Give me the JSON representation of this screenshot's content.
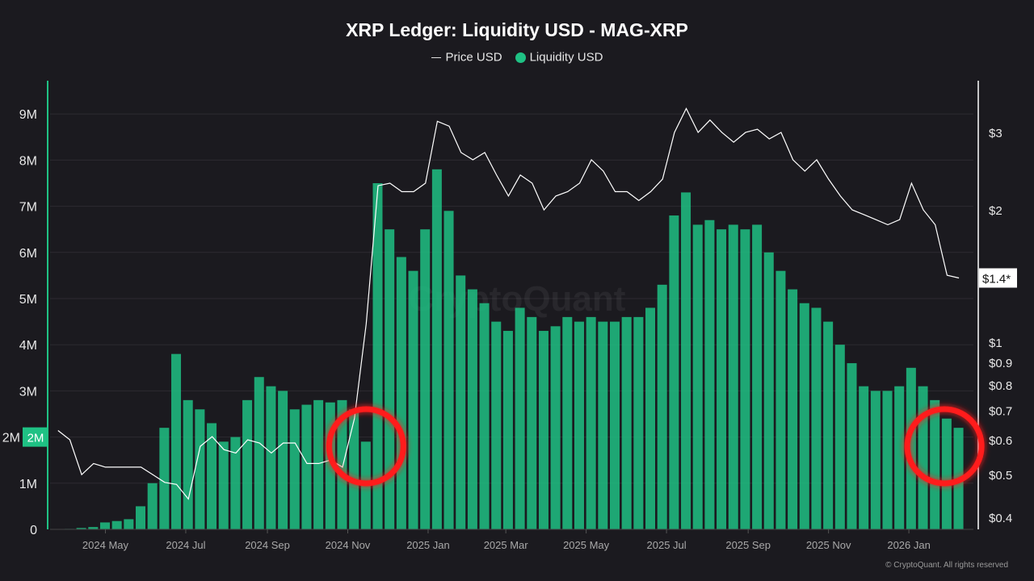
{
  "chart_data": {
    "type": "bar+line",
    "title": "XRP Ledger: Liquidity USD - MAG-XRP",
    "legend": {
      "placement": "top-center",
      "entries": [
        "Price USD",
        "Liquidity USD"
      ]
    },
    "colors": {
      "liquidity": "#1fc184",
      "price": "#ffffff",
      "annotation": "#ff1a1a",
      "background": "#1b1a1f"
    },
    "grid": true,
    "y_left": {
      "ticks": [
        "0",
        "1M",
        "2M",
        "3M",
        "4M",
        "5M",
        "6M",
        "7M",
        "8M",
        "9M"
      ],
      "range": [
        0,
        9.7
      ],
      "unit": "M",
      "highlight_label": "2M"
    },
    "y_right": {
      "scale": "log",
      "ticks": [
        "$0.4",
        "$0.5",
        "$0.6",
        "$0.7",
        "$0.8",
        "$0.9",
        "$1",
        "$2",
        "$3"
      ],
      "tick_values": [
        0.4,
        0.5,
        0.6,
        0.7,
        0.8,
        0.9,
        1,
        2,
        3
      ],
      "current_label": "$1.4*"
    },
    "x_ticks": [
      "2024 May",
      "2024 Jul",
      "2024 Sep",
      "2024 Nov",
      "2025 Jan",
      "2025 Mar",
      "2025 May",
      "2025 Jul",
      "2025 Sep",
      "2025 Nov",
      "2026 Jan"
    ],
    "x_tick_dates": [
      "2024-05-01",
      "2024-07-01",
      "2024-09-01",
      "2024-11-01",
      "2025-01-01",
      "2025-03-01",
      "2025-05-01",
      "2025-07-01",
      "2025-09-01",
      "2025-11-01",
      "2026-01-01"
    ],
    "x_range": [
      "2024-03-20",
      "2026-02-19"
    ],
    "dates": [
      "2024-03-26",
      "2024-04-04",
      "2024-04-13",
      "2024-04-22",
      "2024-05-01",
      "2024-05-10",
      "2024-05-19",
      "2024-05-28",
      "2024-06-06",
      "2024-06-15",
      "2024-06-24",
      "2024-07-03",
      "2024-07-12",
      "2024-07-21",
      "2024-07-30",
      "2024-08-08",
      "2024-08-17",
      "2024-08-26",
      "2024-09-04",
      "2024-09-13",
      "2024-09-22",
      "2024-10-01",
      "2024-10-10",
      "2024-10-19",
      "2024-10-28",
      "2024-11-06",
      "2024-11-15",
      "2024-11-24",
      "2024-12-03",
      "2024-12-12",
      "2024-12-21",
      "2024-12-30",
      "2025-01-08",
      "2025-01-17",
      "2025-01-26",
      "2025-02-04",
      "2025-02-13",
      "2025-02-22",
      "2025-03-03",
      "2025-03-12",
      "2025-03-21",
      "2025-03-30",
      "2025-04-08",
      "2025-04-17",
      "2025-04-26",
      "2025-05-05",
      "2025-05-14",
      "2025-05-23",
      "2025-06-01",
      "2025-06-10",
      "2025-06-19",
      "2025-06-28",
      "2025-07-07",
      "2025-07-16",
      "2025-07-25",
      "2025-08-03",
      "2025-08-12",
      "2025-08-21",
      "2025-08-30",
      "2025-09-08",
      "2025-09-17",
      "2025-09-26",
      "2025-10-05",
      "2025-10-14",
      "2025-10-23",
      "2025-11-01",
      "2025-11-10",
      "2025-11-19",
      "2025-11-28",
      "2025-12-07",
      "2025-12-16",
      "2025-12-25",
      "2026-01-03",
      "2026-01-12",
      "2026-01-21",
      "2026-01-30",
      "2026-02-08"
    ],
    "series": [
      {
        "name": "Liquidity USD",
        "type": "bar",
        "unit": "M USD",
        "values": [
          0,
          0.01,
          0.03,
          0.05,
          0.15,
          0.18,
          0.22,
          0.5,
          1.0,
          2.2,
          3.8,
          2.8,
          2.6,
          2.3,
          1.9,
          2.0,
          2.8,
          3.3,
          3.1,
          3.0,
          2.6,
          2.7,
          2.8,
          2.75,
          2.8,
          2.6,
          1.9,
          7.5,
          6.5,
          5.9,
          5.6,
          6.5,
          7.8,
          6.9,
          5.5,
          5.2,
          4.9,
          4.5,
          4.3,
          4.8,
          4.6,
          4.3,
          4.4,
          4.6,
          4.5,
          4.6,
          4.5,
          4.5,
          4.6,
          4.6,
          4.8,
          5.3,
          6.8,
          7.3,
          6.6,
          6.7,
          6.5,
          6.6,
          6.5,
          6.6,
          6.0,
          5.6,
          5.2,
          4.9,
          4.8,
          4.5,
          4.0,
          3.6,
          3.1,
          3.0,
          3.0,
          3.1,
          3.5,
          3.1,
          2.8,
          2.4,
          2.2
        ]
      },
      {
        "name": "Price USD",
        "type": "line",
        "unit": "USD",
        "values": [
          0.63,
          0.6,
          0.5,
          0.53,
          0.52,
          0.52,
          0.52,
          0.52,
          0.5,
          0.48,
          0.475,
          0.44,
          0.58,
          0.61,
          0.57,
          0.56,
          0.6,
          0.59,
          0.56,
          0.59,
          0.59,
          0.53,
          0.53,
          0.54,
          0.52,
          0.67,
          1.1,
          2.27,
          2.3,
          2.2,
          2.2,
          2.3,
          3.18,
          3.1,
          2.7,
          2.6,
          2.7,
          2.4,
          2.15,
          2.4,
          2.3,
          2.0,
          2.15,
          2.2,
          2.3,
          2.6,
          2.45,
          2.2,
          2.2,
          2.1,
          2.2,
          2.35,
          3.0,
          3.4,
          3.0,
          3.2,
          3.0,
          2.85,
          3.0,
          3.05,
          2.9,
          3.0,
          2.6,
          2.45,
          2.6,
          2.35,
          2.15,
          2.0,
          1.95,
          1.9,
          1.85,
          1.9,
          2.3,
          2.0,
          1.85,
          1.42,
          1.4
        ]
      }
    ],
    "annotations": [
      {
        "type": "circle",
        "near_date": "2024-11-15"
      },
      {
        "type": "circle",
        "near_date": "2026-01-28"
      }
    ]
  },
  "watermark": "CryptoQuant",
  "copyright": "© CryptoQuant. All rights reserved"
}
